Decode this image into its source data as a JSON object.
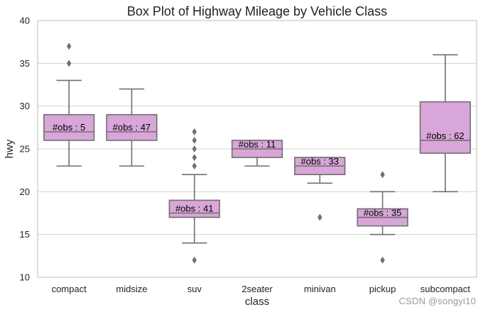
{
  "watermark": "CSDN @songyi10",
  "chart_data": {
    "type": "box",
    "title": "Box Plot of Highway Mileage by Vehicle Class",
    "xlabel": "class",
    "ylabel": "hwy",
    "ylim": [
      10,
      40
    ],
    "yticks": [
      10,
      15,
      20,
      25,
      30,
      35,
      40
    ],
    "grid": true,
    "colors": {
      "box_fill": "#d8a6d8",
      "box_edge": "#6f6f6f",
      "grid": "#d3d3d3",
      "spine": "#c9c9c9",
      "text": "#222222",
      "label_text": "#000000"
    },
    "categories": [
      "compact",
      "midsize",
      "suv",
      "2seater",
      "minivan",
      "pickup",
      "subcompact"
    ],
    "boxes": [
      {
        "class": "compact",
        "q1": 26,
        "median": 27,
        "q3": 29,
        "whisker_low": 23,
        "whisker_high": 33,
        "outliers": [
          35,
          37
        ],
        "label": "#obs : 5"
      },
      {
        "class": "midsize",
        "q1": 26,
        "median": 27,
        "q3": 29,
        "whisker_low": 23,
        "whisker_high": 32,
        "outliers": [],
        "label": "#obs : 47"
      },
      {
        "class": "suv",
        "q1": 17,
        "median": 17.5,
        "q3": 19,
        "whisker_low": 14,
        "whisker_high": 22,
        "outliers": [
          12,
          23,
          24,
          25,
          26,
          27
        ],
        "label": "#obs : 41"
      },
      {
        "class": "2seater",
        "q1": 24,
        "median": 25,
        "q3": 26,
        "whisker_low": 23,
        "whisker_high": 26,
        "outliers": [],
        "label": "#obs : 11"
      },
      {
        "class": "minivan",
        "q1": 22,
        "median": 23,
        "q3": 24,
        "whisker_low": 21,
        "whisker_high": 24,
        "outliers": [
          17
        ],
        "label": "#obs : 33"
      },
      {
        "class": "pickup",
        "q1": 16,
        "median": 17,
        "q3": 18,
        "whisker_low": 15,
        "whisker_high": 20,
        "outliers": [
          12,
          22
        ],
        "label": "#obs : 35"
      },
      {
        "class": "subcompact",
        "q1": 24.5,
        "median": 26,
        "q3": 30.5,
        "whisker_low": 20,
        "whisker_high": 36,
        "outliers": [],
        "label": "#obs : 62"
      }
    ]
  }
}
